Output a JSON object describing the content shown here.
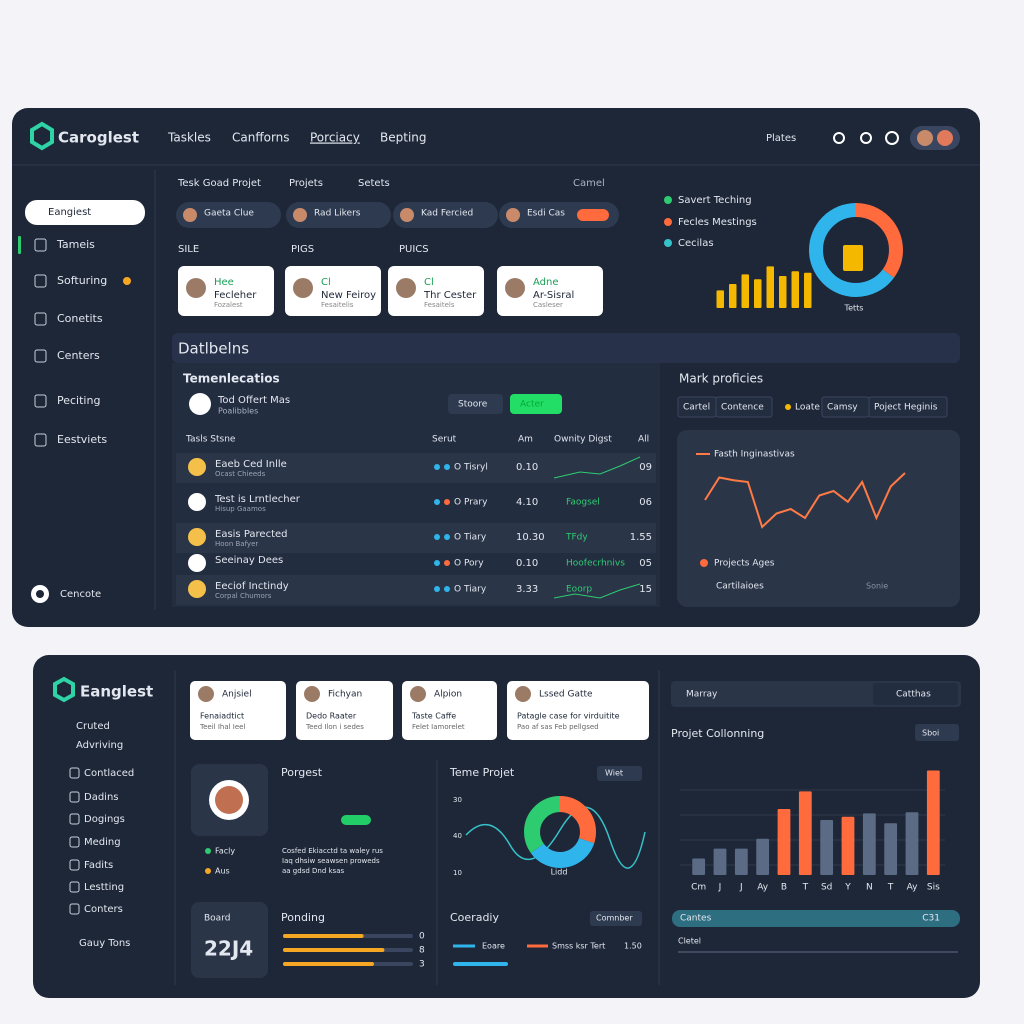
{
  "top": {
    "logo": "Caroglest",
    "nav": [
      "Taskles",
      "Canfforns",
      "Porciacy",
      "Bepting"
    ],
    "search": "Plates",
    "sidebar": {
      "search": "Eangiest",
      "items": [
        "Tameis",
        "Softuring",
        "Conetits",
        "Centers",
        "Peciting",
        "Eestviets"
      ],
      "bottom": "Cencote"
    },
    "tabs": [
      "Tesk Goad Projet",
      "Projets",
      "Setets"
    ],
    "tab_right": "Camel",
    "chips": [
      "Gaeta Clue",
      "Rad Likers",
      "Kad Fercied",
      "Esdi Cas"
    ],
    "labels": [
      "SILE",
      "PIGS",
      "PUICS"
    ],
    "cards": [
      {
        "name": "Hee",
        "title": "Fecleher",
        "sub": "Fozalest"
      },
      {
        "name": "Cl",
        "title": "New Feiroy",
        "sub": "Fesaitelis"
      },
      {
        "name": "Cl",
        "title": "Thr Cester",
        "sub": "Fesaitels"
      },
      {
        "name": "Adne",
        "title": "Ar-Sisral",
        "sub": "Casleser"
      }
    ],
    "legend": [
      {
        "name": "Savert Teching",
        "color": "#2ecc71"
      },
      {
        "name": "Fecles Mestings",
        "color": "#ff6b3d"
      },
      {
        "name": "Cecilas",
        "color": "#36c2c9"
      }
    ],
    "bar_chart": {
      "type": "bar",
      "values": [
        22,
        30,
        42,
        36,
        52,
        40,
        46,
        44
      ],
      "ylim": [
        0,
        100
      ],
      "color": "#f5b800"
    },
    "donut": {
      "type": "pie",
      "title": "Tetts",
      "values": [
        35,
        65
      ],
      "colors": [
        "#ff6b3d",
        "#2fb5ec"
      ]
    },
    "section": "Datlbelns",
    "table": {
      "title": "Temenlecatios",
      "owner": "Tod Offert Mas",
      "owner_sub": "Poalibbles",
      "buttons": [
        "Stoore",
        "Acter"
      ],
      "header": [
        "Tasls Stsne",
        "Serut",
        "Am",
        "Ownity Digst",
        "All"
      ],
      "rows": [
        [
          "Eaeb Ced Inlle",
          "Ocast Chieeds",
          "O Tisryl",
          "0.10",
          "",
          "09"
        ],
        [
          "Test is Lrntlecher",
          "Hisup Gaamos",
          "O Prary",
          "4.10",
          "Faogsel",
          "06"
        ],
        [
          "Easis Parected",
          "Hoon Bafyer",
          "O Tiary",
          "10.30",
          "TFdy",
          "1.55"
        ],
        [
          "Seeinay Dees",
          "",
          "O Pory",
          "0.10",
          "Hoofecrhnivs",
          "05"
        ],
        [
          "Eeciof Inctindy",
          "Corpal Chumors",
          "O Tiary",
          "3.33",
          "Eoorp",
          "15"
        ]
      ]
    },
    "mark": {
      "title": "Mark proficies",
      "tabs": [
        "Cartel",
        "Contence",
        "Loate",
        "Camsy",
        "Poject Heginis"
      ],
      "chart": {
        "type": "line",
        "name": "Fasth Inginastivas",
        "color": "#ff7a45",
        "values": [
          50,
          75,
          72,
          70,
          20,
          35,
          40,
          30,
          55,
          60,
          48,
          70,
          30,
          65,
          80
        ],
        "ylim": [
          0,
          100
        ]
      },
      "legend": [
        "Projects Ages",
        "Cartilaioes",
        "Sonie"
      ]
    }
  },
  "bottom": {
    "logo": "Eanglest",
    "sub": [
      "Cruted",
      "Advriving"
    ],
    "menu": [
      "Contlaced",
      "Dadins",
      "Dogings",
      "Meding",
      "Fadits",
      "Lestting",
      "Conters"
    ],
    "menu_bottom": "Gauy Tons",
    "cards": [
      {
        "name": "Anjsiel",
        "title": "Fenaiadtict",
        "sub": "Teeil Ihal Ieel"
      },
      {
        "name": "Fichyan",
        "title": "Dedo Raater",
        "sub": "Teed Ilon i sedes"
      },
      {
        "name": "Alpion",
        "title": "Taste Caffe",
        "sub": "Felet Iamorelet"
      },
      {
        "name": "Lssed Gatte",
        "title": "Patagle case for virduitite",
        "sub": "Pao af sas Feb pellgsed"
      }
    ],
    "profile": {
      "title": "Porgest",
      "items": [
        "Facly",
        "Aus"
      ],
      "text": [
        "Cosfed Ekiacctd ta waley rus",
        "Iaq dhsiw seawsen proweds",
        "aa gdsd Dnd ksas"
      ]
    },
    "board": {
      "label": "Board",
      "value": "22J4"
    },
    "pending": {
      "title": "Ponding",
      "type": "progress",
      "values": [
        62,
        78,
        70
      ],
      "ylim": [
        0,
        100
      ],
      "labels": [
        "0",
        "8",
        "3"
      ],
      "colors": [
        "#f5a623",
        "#f5a623",
        "#f5a623"
      ]
    },
    "project": {
      "title": "Teme Projet",
      "button": "Wiet",
      "ticks": [
        "30",
        "40",
        "10"
      ],
      "label": "Lidd",
      "type": "pie",
      "values": [
        30,
        35,
        35
      ],
      "colors": [
        "#ff6b3d",
        "#2fb5ec",
        "#2ecc71"
      ]
    },
    "coeradiy": {
      "title": "Coeradiy",
      "button": "Comnber",
      "legend": [
        "Eoare",
        "Smss ksr Tert"
      ],
      "value": "1.50"
    },
    "toolbar": {
      "left": "Marray",
      "right": "Catthas"
    },
    "columns": {
      "title": "Projet Collonning",
      "button": "Sboi",
      "type": "bar",
      "categories": [
        "Cm",
        "J",
        "J",
        "Ay",
        "B",
        "T",
        "Sd",
        "Y",
        "N",
        "T",
        "Ay",
        "Sis"
      ],
      "values": [
        15,
        24,
        24,
        33,
        60,
        76,
        50,
        53,
        56,
        47,
        57,
        95
      ],
      "ylim": [
        0,
        100
      ],
      "colors": [
        "#5b6b85",
        "#5b6b85",
        "#5b6b85",
        "#5b6b85",
        "#ff6b3d",
        "#ff6b3d",
        "#5b6b85",
        "#ff6b3d",
        "#5b6b85",
        "#5b6b85",
        "#5b6b85",
        "#ff6b3d"
      ]
    },
    "footer": {
      "bar": "Cantes",
      "bar_value": "C31",
      "label": "Cletel"
    }
  }
}
